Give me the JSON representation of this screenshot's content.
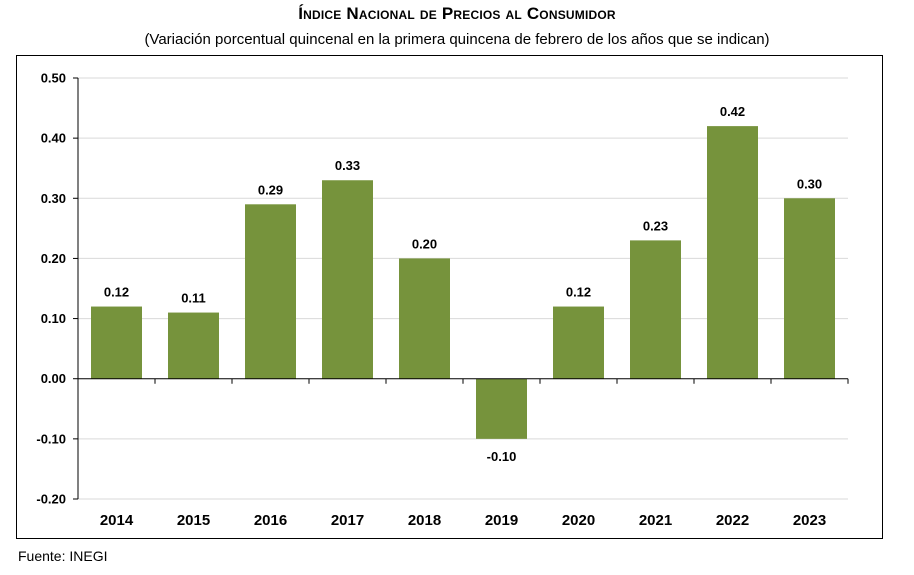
{
  "chart_data": {
    "type": "bar",
    "title": "Índice Nacional de Precios al Consumidor",
    "subtitle": "(Variación porcentual quincenal en la primera quincena de febrero de los años que se indican)",
    "categories": [
      "2014",
      "2015",
      "2016",
      "2017",
      "2018",
      "2019",
      "2020",
      "2021",
      "2022",
      "2023"
    ],
    "values": [
      0.12,
      0.11,
      0.29,
      0.33,
      0.2,
      -0.1,
      0.12,
      0.23,
      0.42,
      0.3
    ],
    "value_labels": [
      "0.12",
      "0.11",
      "0.29",
      "0.33",
      "0.20",
      "-0.10",
      "0.12",
      "0.23",
      "0.42",
      "0.30"
    ],
    "ylim": [
      -0.2,
      0.5
    ],
    "yticks": [
      "0.50",
      "0.40",
      "0.30",
      "0.20",
      "0.10",
      "0.00",
      "-0.10",
      "-0.20"
    ],
    "ytick_values": [
      0.5,
      0.4,
      0.3,
      0.2,
      0.1,
      0.0,
      -0.1,
      -0.2
    ],
    "xlabel": "",
    "ylabel": "",
    "grid": true,
    "bar_color": "#76933C",
    "grid_color": "#D9D9D9"
  },
  "source": "Fuente: INEGI"
}
